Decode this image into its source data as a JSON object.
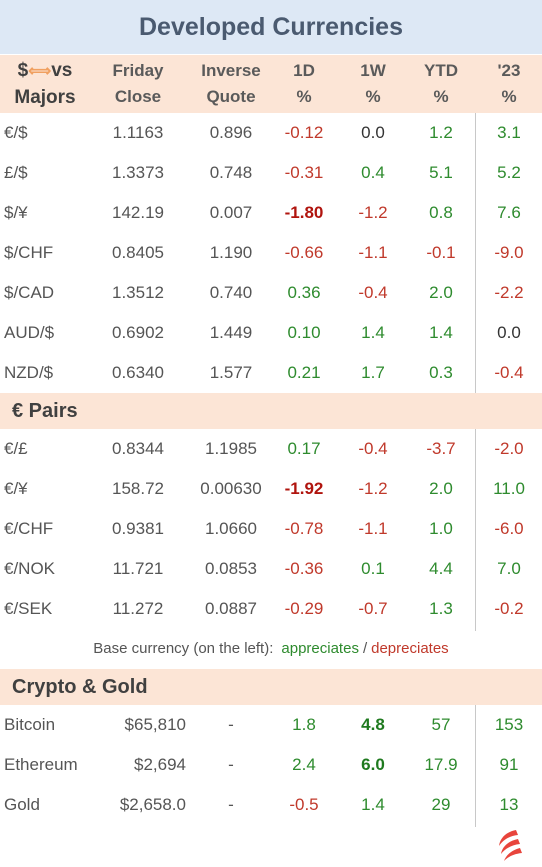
{
  "title": "Developed Currencies",
  "header": {
    "col1": [
      "$",
      "vs",
      "Majors"
    ],
    "col2": [
      "Friday",
      "Close"
    ],
    "col3": [
      "Inverse",
      "Quote"
    ],
    "col4": [
      "1D",
      "%"
    ],
    "col5": [
      "1W",
      "%"
    ],
    "col6": [
      "YTD",
      "%"
    ],
    "col7": [
      "'23",
      "%"
    ]
  },
  "majors": [
    {
      "pair": "€/$",
      "close": "1.1163",
      "inverse": "0.896",
      "d1": "-0.12",
      "w1": "0.0",
      "ytd": "1.2",
      "y23": "3.1"
    },
    {
      "pair": "£/$",
      "close": "1.3373",
      "inverse": "0.748",
      "d1": "-0.31",
      "w1": "0.4",
      "ytd": "5.1",
      "y23": "5.2"
    },
    {
      "pair": "$/¥",
      "close": "142.19",
      "inverse": "0.007",
      "d1": "-1.80",
      "w1": "-1.2",
      "ytd": "0.8",
      "y23": "7.6"
    },
    {
      "pair": "$/CHF",
      "close": "0.8405",
      "inverse": "1.190",
      "d1": "-0.66",
      "w1": "-1.1",
      "ytd": "-0.1",
      "y23": "-9.0"
    },
    {
      "pair": "$/CAD",
      "close": "1.3512",
      "inverse": "0.740",
      "d1": "0.36",
      "w1": "-0.4",
      "ytd": "2.0",
      "y23": "-2.2"
    },
    {
      "pair": "AUD/$",
      "close": "0.6902",
      "inverse": "1.449",
      "d1": "0.10",
      "w1": "1.4",
      "ytd": "1.4",
      "y23": "0.0"
    },
    {
      "pair": "NZD/$",
      "close": "0.6340",
      "inverse": "1.577",
      "d1": "0.21",
      "w1": "1.7",
      "ytd": "0.3",
      "y23": "-0.4"
    }
  ],
  "euro_section": "€ Pairs",
  "euro": [
    {
      "pair": "€/£",
      "close": "0.8344",
      "inverse": "1.1985",
      "d1": "0.17",
      "w1": "-0.4",
      "ytd": "-3.7",
      "y23": "-2.0"
    },
    {
      "pair": "€/¥",
      "close": "158.72",
      "inverse": "0.00630",
      "d1": "-1.92",
      "w1": "-1.2",
      "ytd": "2.0",
      "y23": "11.0"
    },
    {
      "pair": "€/CHF",
      "close": "0.9381",
      "inverse": "1.0660",
      "d1": "-0.78",
      "w1": "-1.1",
      "ytd": "1.0",
      "y23": "-6.0"
    },
    {
      "pair": "€/NOK",
      "close": "11.721",
      "inverse": "0.0853",
      "d1": "-0.36",
      "w1": "0.1",
      "ytd": "4.4",
      "y23": "7.0"
    },
    {
      "pair": "€/SEK",
      "close": "11.272",
      "inverse": "0.0887",
      "d1": "-0.29",
      "w1": "-0.7",
      "ytd": "1.3",
      "y23": "-0.2"
    }
  ],
  "footnote": {
    "prefix": "Base currency (on the left):",
    "up": "appreciates",
    "sep": "/",
    "down": "depreciates"
  },
  "crypto_section": "Crypto & Gold",
  "crypto": [
    {
      "pair": "Bitcoin",
      "close": "$65,810",
      "inverse": "-",
      "d1": "1.8",
      "w1": "4.8",
      "ytd": "57",
      "y23": "153"
    },
    {
      "pair": "Ethereum",
      "close": "$2,694",
      "inverse": "-",
      "d1": "2.4",
      "w1": "6.0",
      "ytd": "17.9",
      "y23": "91"
    },
    {
      "pair": "Gold",
      "close": "$2,658.0",
      "inverse": "-",
      "d1": "-0.5",
      "w1": "1.4",
      "ytd": "29",
      "y23": "13"
    }
  ],
  "colors": {
    "positive": "#2e8b2e",
    "negative": "#c0392b",
    "header_bg": "#fce5d6",
    "title_bg": "#dde8f5",
    "logo": "#e8453c"
  },
  "logo_icon": "flame-logo-icon"
}
